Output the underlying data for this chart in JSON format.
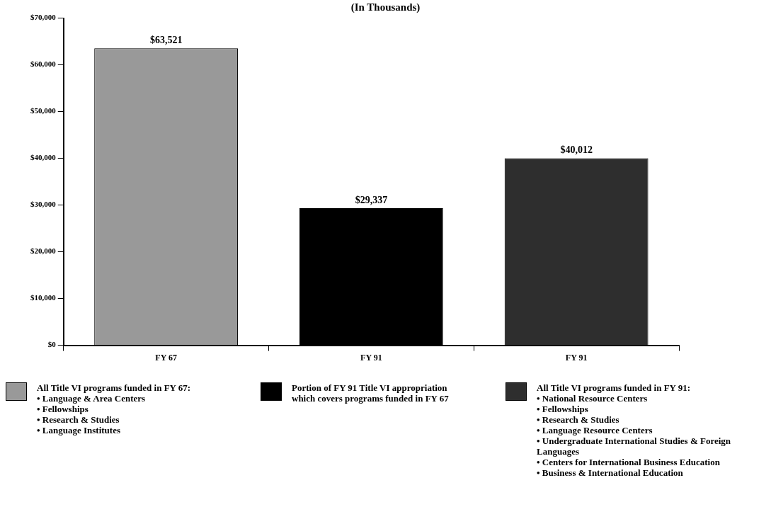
{
  "chart_data": {
    "type": "bar",
    "title": "(In Thousands)",
    "categories": [
      "FY 67",
      "FY 91",
      "FY 91"
    ],
    "series": [
      {
        "name": "All Title VI programs funded in FY 67:\n• Language & Area Centers\n• Fellowships\n• Research & Studies\n• Language Institutes",
        "color": "#999999",
        "values": [
          63521,
          null,
          null
        ]
      },
      {
        "name": "Portion of FY 91 Title VI appropriation which covers programs funded in FY 67",
        "color": "#000000",
        "values": [
          null,
          29337,
          null
        ]
      },
      {
        "name": "All Title VI programs funded in FY 91:\n• National Resource Centers\n• Fellowships\n• Research & Studies\n• Language Resource Centers\n• Undergraduate International Studies & Foreign Languages\n• Centers for International Business Education\n• Business & International Education",
        "color": "#2e2e2e",
        "values": [
          null,
          null,
          40012
        ]
      }
    ],
    "value_labels": [
      "$63,521",
      "$29,337",
      "$40,012"
    ],
    "stacked": true,
    "ylim": [
      0,
      70000
    ],
    "yticks": [
      {
        "value": 0,
        "label": "$0"
      },
      {
        "value": 10000,
        "label": "$10,000"
      },
      {
        "value": 20000,
        "label": "$20,000"
      },
      {
        "value": 30000,
        "label": "$30,000"
      },
      {
        "value": 40000,
        "label": "$40,000"
      },
      {
        "value": 50000,
        "label": "$50,000"
      },
      {
        "value": 60000,
        "label": "$60,000"
      },
      {
        "value": 70000,
        "label": "$70,000"
      }
    ],
    "grid": false,
    "legend": "bottom"
  }
}
